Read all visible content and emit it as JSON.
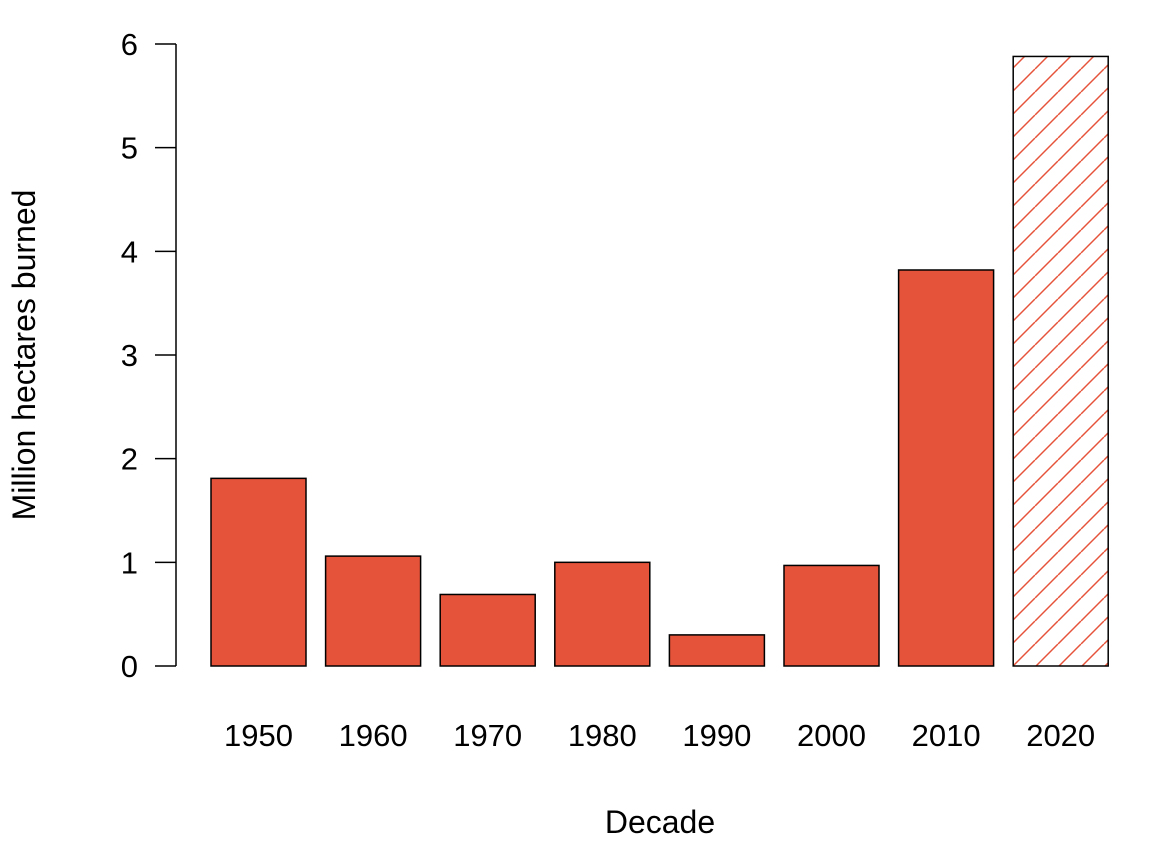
{
  "chart_data": {
    "type": "bar",
    "title": "",
    "xlabel": "Decade",
    "ylabel": "Million hectares burned",
    "categories": [
      "1950",
      "1960",
      "1970",
      "1980",
      "1990",
      "2000",
      "2010",
      "2020"
    ],
    "values": [
      1.81,
      1.06,
      0.69,
      1.0,
      0.3,
      0.97,
      3.82,
      5.88
    ],
    "hatched": [
      false,
      false,
      false,
      false,
      false,
      false,
      false,
      true
    ],
    "ylim": [
      0,
      6
    ],
    "yticks": [
      "0",
      "1",
      "2",
      "3",
      "4",
      "5",
      "6"
    ],
    "grid": false,
    "colors": {
      "bar": "#E5533A",
      "outline": "#000000"
    }
  }
}
